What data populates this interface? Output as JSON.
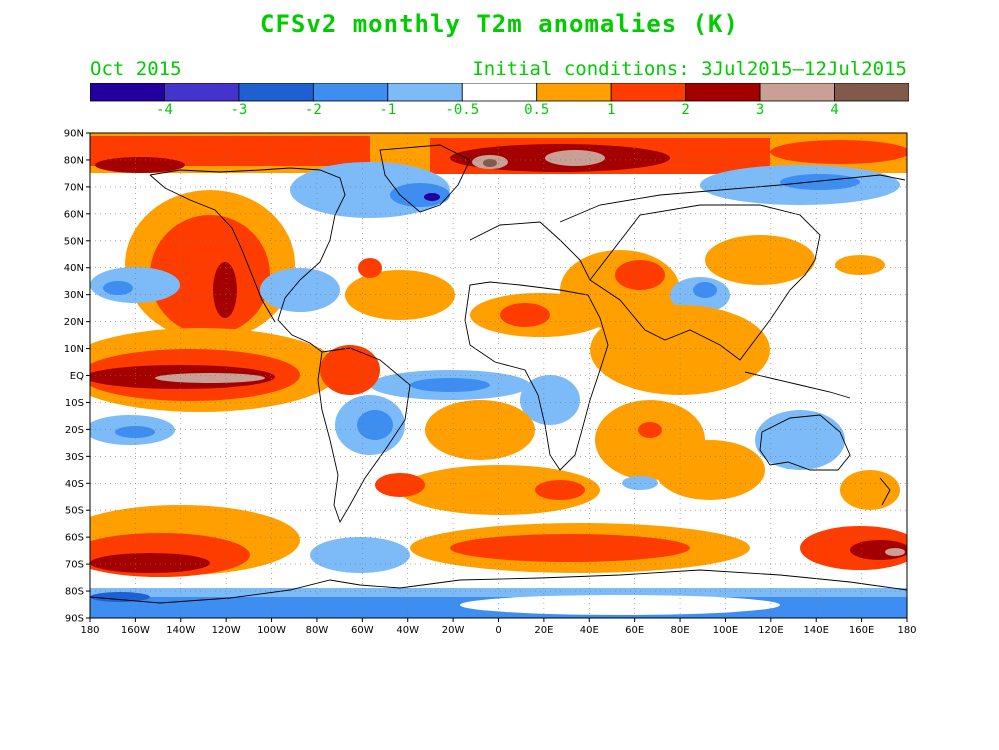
{
  "title": "CFSv2 monthly T2m anomalies (K)",
  "valid_month": "Oct 2015",
  "initial_conditions": "Initial conditions: 3Jul2015–12Jul2015",
  "colorbar": {
    "colors": [
      "#2200a0",
      "#4433cc",
      "#1e5fd2",
      "#3d8ef0",
      "#7dbbf8",
      "#ffffff",
      "#ffa000",
      "#ff3c00",
      "#a50000",
      "#c8a096",
      "#825a4b"
    ],
    "tick_labels": [
      "-4",
      "-3",
      "-2",
      "-1",
      "-0.5",
      "0.5",
      "1",
      "2",
      "3",
      "4"
    ]
  },
  "map": {
    "lat_labels": [
      "90N",
      "80N",
      "70N",
      "60N",
      "50N",
      "40N",
      "30N",
      "20N",
      "10N",
      "EQ",
      "10S",
      "20S",
      "30S",
      "40S",
      "50S",
      "60S",
      "70S",
      "80S",
      "90S"
    ],
    "lon_labels": [
      "180",
      "160W",
      "140W",
      "120W",
      "100W",
      "80W",
      "60W",
      "40W",
      "20W",
      "0",
      "20E",
      "40E",
      "60E",
      "80E",
      "100E",
      "120E",
      "140E",
      "160E",
      "180"
    ],
    "lon_range": [
      -180,
      180
    ],
    "lat_range": [
      -90,
      90
    ],
    "grid": "dotted"
  }
}
